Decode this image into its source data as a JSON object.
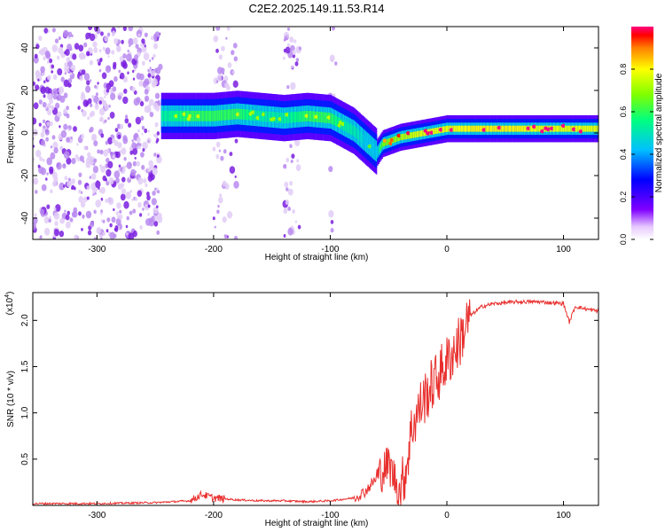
{
  "figure_title": "C2E2.2025.149.11.53.R14",
  "colors": {
    "signal": "#e8302e",
    "scatter": "#8a2be2",
    "axis": "#000000"
  },
  "chart_data": [
    {
      "type": "heatmap",
      "title": "C2E2.2025.149.11.53.R14",
      "xlabel": "Height of straight line (km)",
      "ylabel": "Frequency (Hz)",
      "xlim": [
        -355,
        130
      ],
      "ylim": [
        -50,
        50
      ],
      "xticks": [
        -300,
        -200,
        -100,
        0,
        100
      ],
      "yticks": [
        -40,
        -20,
        0,
        20,
        40
      ],
      "colorbar": {
        "label": "Normalized spectral amplitude",
        "range": [
          0,
          1
        ],
        "ticks": [
          "0.0",
          "0.2",
          "0.4",
          "0.6",
          "0.8"
        ],
        "tick_values": [
          0,
          0.2,
          0.4,
          0.6,
          0.8
        ]
      },
      "ridge": {
        "height_km": [
          -245,
          -220,
          -200,
          -180,
          -160,
          -140,
          -120,
          -100,
          -90,
          -80,
          -70,
          -60,
          -55,
          -50,
          -40,
          -30,
          -20,
          -10,
          0,
          20,
          40,
          60,
          80,
          100,
          130
        ],
        "frequency_hz": [
          8,
          8,
          8,
          9,
          8,
          7,
          8,
          7,
          4,
          1,
          -4,
          -9,
          -5,
          -4,
          -2,
          -1,
          0,
          1,
          2,
          2,
          2,
          2,
          2,
          2,
          2
        ],
        "amplitude": [
          0.55,
          0.6,
          0.6,
          0.6,
          0.55,
          0.55,
          0.6,
          0.6,
          0.55,
          0.55,
          0.5,
          0.5,
          0.7,
          0.75,
          0.8,
          0.85,
          0.9,
          0.9,
          0.9,
          0.95,
          0.95,
          0.95,
          0.9,
          0.9,
          0.9
        ]
      }
    },
    {
      "type": "line",
      "xlabel": "Height of straight line (km)",
      "ylabel": "SNR (10 * v/v)",
      "y_scale_label": "(x10",
      "y_scale_exponent": "4",
      "xlim": [
        -355,
        130
      ],
      "ylim": [
        0,
        2.3
      ],
      "xticks": [
        -300,
        -200,
        -100,
        0,
        100
      ],
      "yticks": [
        0.5,
        1.0,
        1.5,
        2.0
      ],
      "ytick_labels": [
        "0.5",
        "1.0",
        "1.5",
        "2.0"
      ],
      "series": [
        {
          "name": "SNR",
          "x": [
            -355,
            -300,
            -250,
            -220,
            -210,
            -200,
            -180,
            -160,
            -140,
            -120,
            -100,
            -80,
            -70,
            -60,
            -50,
            -45,
            -40,
            -35,
            -30,
            -20,
            -10,
            0,
            10,
            20,
            30,
            40,
            60,
            80,
            100,
            105,
            110,
            120,
            130
          ],
          "y": [
            0.02,
            0.02,
            0.03,
            0.05,
            0.12,
            0.08,
            0.06,
            0.05,
            0.05,
            0.04,
            0.05,
            0.08,
            0.15,
            0.3,
            0.45,
            0.3,
            0.15,
            0.4,
            0.85,
            1.15,
            1.35,
            1.55,
            1.75,
            2.05,
            2.15,
            2.18,
            2.2,
            2.2,
            2.18,
            1.98,
            2.15,
            2.12,
            2.1
          ]
        }
      ]
    }
  ]
}
